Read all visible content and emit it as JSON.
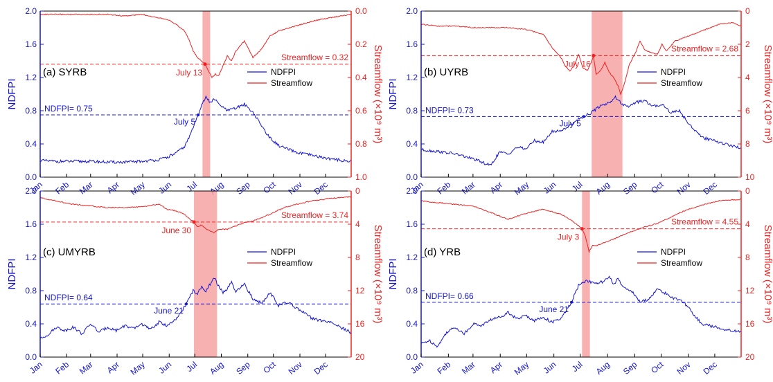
{
  "colors": {
    "ndfpi": "#1414d2",
    "streamflow": "#ee2222",
    "shade": "#f7a3a3",
    "axis_left": "#1414d2",
    "axis_right": "#ee2222"
  },
  "months": [
    "Jan",
    "Feb",
    "Mar",
    "Apr",
    "May",
    "Jun",
    "Jul",
    "Aug",
    "Sep",
    "Oct",
    "Nov",
    "Dec"
  ],
  "chart_data": [
    {
      "type": "line",
      "panel_label": "(a) SYRB",
      "ylabel_left": "NDFPI",
      "ylabel_right": "Streamflow (×10⁹ m³)",
      "ylim_left": [
        0,
        2.0
      ],
      "ylim_right": [
        0,
        1.0
      ],
      "right_inverted": true,
      "left_ticks": [
        "0.0",
        "0.4",
        "0.8",
        "1.2",
        "1.6",
        "2.0"
      ],
      "right_ticks": [
        "0.0",
        "0.2",
        "0.4",
        "0.6",
        "0.8",
        "1.0"
      ],
      "legend": [
        "NDFPI",
        "Streamflow"
      ],
      "shade": [
        191,
        200
      ],
      "ndfpi_threshold": 0.75,
      "ndfpi_threshold_label": "NDFPI= 0.75",
      "ndfpi_cross": {
        "day": 186,
        "label": "July 5"
      },
      "stream_threshold": 0.32,
      "stream_threshold_label": "Streamflow = 0.32",
      "stream_cross": {
        "day": 194,
        "label": "July 13"
      },
      "ndfpi": {
        "days": [
          1,
          20,
          40,
          60,
          80,
          100,
          120,
          140,
          150,
          160,
          170,
          175,
          180,
          186,
          190,
          195,
          200,
          205,
          210,
          220,
          230,
          240,
          250,
          260,
          270,
          280,
          300,
          320,
          340,
          364
        ],
        "values": [
          0.2,
          0.19,
          0.19,
          0.19,
          0.18,
          0.18,
          0.19,
          0.21,
          0.24,
          0.29,
          0.37,
          0.47,
          0.6,
          0.75,
          0.88,
          0.96,
          0.9,
          0.94,
          0.88,
          0.8,
          0.83,
          0.88,
          0.78,
          0.62,
          0.47,
          0.38,
          0.3,
          0.26,
          0.22,
          0.19
        ]
      },
      "streamflow": {
        "days": [
          1,
          20,
          40,
          60,
          80,
          100,
          120,
          140,
          150,
          160,
          170,
          175,
          180,
          185,
          190,
          194,
          198,
          202,
          206,
          210,
          215,
          220,
          225,
          230,
          240,
          250,
          260,
          270,
          280,
          300,
          320,
          340,
          364
        ],
        "values": [
          0.02,
          0.02,
          0.02,
          0.02,
          0.02,
          0.03,
          0.02,
          0.04,
          0.05,
          0.08,
          0.12,
          0.17,
          0.24,
          0.28,
          0.3,
          0.32,
          0.36,
          0.4,
          0.38,
          0.39,
          0.33,
          0.27,
          0.3,
          0.24,
          0.18,
          0.28,
          0.23,
          0.15,
          0.12,
          0.09,
          0.06,
          0.04,
          0.02
        ]
      }
    },
    {
      "type": "line",
      "panel_label": "(b) UYRB",
      "ylabel_left": "NDFPI",
      "ylabel_right": "Streamflow (×10⁹ m³)",
      "ylim_left": [
        0,
        2.0
      ],
      "ylim_right": [
        0,
        10
      ],
      "right_inverted": true,
      "left_ticks": [
        "0.0",
        "0.4",
        "0.8",
        "1.2",
        "1.6",
        "2.0"
      ],
      "right_ticks": [
        "0",
        "2",
        "4",
        "6",
        "8",
        "10"
      ],
      "legend": [
        "NDFPI",
        "Streamflow"
      ],
      "shade": [
        195,
        230
      ],
      "ndfpi_threshold": 0.73,
      "ndfpi_threshold_label": "NDFPI= 0.73",
      "ndfpi_cross": {
        "day": 186,
        "label": "July 5"
      },
      "stream_threshold": 2.68,
      "stream_threshold_label": "Streamflow = 2.68",
      "stream_cross": {
        "day": 197,
        "label": "July 16"
      },
      "ndfpi": {
        "days": [
          1,
          20,
          40,
          60,
          70,
          80,
          90,
          100,
          110,
          120,
          130,
          140,
          150,
          160,
          170,
          180,
          186,
          195,
          205,
          215,
          222,
          228,
          235,
          245,
          255,
          265,
          275,
          285,
          295,
          305,
          320,
          340,
          364
        ],
        "values": [
          0.33,
          0.31,
          0.28,
          0.22,
          0.18,
          0.14,
          0.3,
          0.28,
          0.36,
          0.34,
          0.44,
          0.42,
          0.55,
          0.56,
          0.62,
          0.7,
          0.73,
          0.78,
          0.86,
          0.9,
          0.96,
          0.9,
          0.84,
          0.9,
          0.92,
          0.85,
          0.88,
          0.78,
          0.8,
          0.65,
          0.48,
          0.42,
          0.35
        ]
      },
      "streamflow": {
        "days": [
          1,
          20,
          40,
          60,
          80,
          100,
          120,
          140,
          150,
          160,
          165,
          170,
          175,
          180,
          185,
          190,
          195,
          197,
          200,
          205,
          210,
          215,
          220,
          225,
          228,
          232,
          238,
          245,
          250,
          255,
          262,
          270,
          275,
          280,
          290,
          300,
          320,
          340,
          355,
          364
        ],
        "values": [
          0.8,
          0.9,
          0.9,
          1.0,
          1.0,
          1.0,
          1.1,
          1.4,
          2.2,
          2.8,
          3.3,
          3.6,
          3.3,
          2.6,
          3.4,
          3.6,
          3.0,
          2.68,
          3.8,
          3.6,
          3.1,
          3.7,
          4.0,
          4.5,
          5.0,
          4.4,
          3.2,
          2.5,
          1.8,
          2.3,
          2.5,
          2.6,
          2.0,
          2.4,
          1.8,
          1.6,
          1.2,
          0.8,
          0.7,
          0.9
        ]
      }
    },
    {
      "type": "line",
      "panel_label": "(c) UMYRB",
      "ylabel_left": "NDFPI",
      "ylabel_right": "Streamflow (×10⁹ m³)",
      "ylim_left": [
        0,
        2.0
      ],
      "ylim_right": [
        0,
        20
      ],
      "right_inverted": true,
      "left_ticks": [
        "0.0",
        "0.4",
        "0.8",
        "1.2",
        "1.6",
        "2.0"
      ],
      "right_ticks": [
        "0",
        "4",
        "8",
        "12",
        "16",
        "20"
      ],
      "legend": [
        "NDFPI",
        "Streamflow"
      ],
      "shade": [
        181,
        208
      ],
      "ndfpi_threshold": 0.64,
      "ndfpi_threshold_label": "NDFPI= 0.64",
      "ndfpi_cross": {
        "day": 172,
        "label": "June 21"
      },
      "stream_threshold": 3.74,
      "stream_threshold_label": "Streamflow = 3.74",
      "stream_cross": {
        "day": 181,
        "label": "June 30"
      },
      "ndfpi": {
        "days": [
          1,
          10,
          20,
          30,
          40,
          50,
          60,
          70,
          80,
          90,
          100,
          110,
          120,
          130,
          140,
          150,
          160,
          172,
          180,
          185,
          190,
          195,
          200,
          205,
          210,
          215,
          220,
          225,
          230,
          240,
          250,
          260,
          270,
          280,
          290,
          300,
          320,
          340,
          364
        ],
        "values": [
          0.22,
          0.27,
          0.36,
          0.32,
          0.36,
          0.28,
          0.4,
          0.3,
          0.36,
          0.32,
          0.38,
          0.34,
          0.4,
          0.33,
          0.42,
          0.38,
          0.45,
          0.64,
          0.8,
          0.76,
          0.84,
          0.8,
          0.88,
          0.95,
          0.85,
          0.78,
          0.82,
          0.9,
          0.78,
          0.88,
          0.7,
          0.65,
          0.78,
          0.62,
          0.66,
          0.6,
          0.46,
          0.42,
          0.3
        ]
      },
      "streamflow": {
        "days": [
          1,
          20,
          40,
          60,
          80,
          100,
          120,
          140,
          150,
          160,
          170,
          175,
          181,
          185,
          190,
          195,
          200,
          205,
          210,
          220,
          230,
          240,
          250,
          260,
          270,
          280,
          290,
          300,
          320,
          340,
          364
        ],
        "values": [
          0.8,
          1.2,
          1.6,
          1.8,
          2.0,
          2.0,
          1.9,
          1.6,
          2.2,
          2.4,
          2.8,
          3.3,
          3.74,
          4.3,
          4.1,
          4.6,
          4.8,
          5.0,
          4.6,
          4.6,
          4.2,
          3.8,
          3.6,
          3.2,
          2.8,
          2.3,
          1.9,
          1.6,
          1.2,
          0.9,
          0.7
        ]
      }
    },
    {
      "type": "line",
      "panel_label": "(d) YRB",
      "ylabel_left": "NDFPI",
      "ylabel_right": "Streamflow (×10⁹ m³)",
      "ylim_left": [
        0,
        2.0
      ],
      "ylim_right": [
        0,
        20
      ],
      "right_inverted": true,
      "left_ticks": [
        "0.0",
        "0.4",
        "0.8",
        "1.2",
        "1.6",
        "2.0"
      ],
      "right_ticks": [
        "0",
        "4",
        "8",
        "12",
        "16",
        "20"
      ],
      "legend": [
        "NDFPI",
        "Streamflow"
      ],
      "shade": [
        184,
        193
      ],
      "ndfpi_threshold": 0.66,
      "ndfpi_threshold_label": "NDFPI= 0.66",
      "ndfpi_cross": {
        "day": 172,
        "label": "June 21"
      },
      "stream_threshold": 4.55,
      "stream_threshold_label": "Streamflow = 4.55",
      "stream_cross": {
        "day": 184,
        "label": "July 3"
      },
      "ndfpi": {
        "days": [
          1,
          10,
          20,
          30,
          40,
          50,
          60,
          70,
          80,
          90,
          100,
          110,
          120,
          130,
          140,
          150,
          160,
          172,
          180,
          185,
          190,
          200,
          210,
          215,
          220,
          225,
          230,
          240,
          250,
          260,
          270,
          280,
          290,
          300,
          320,
          340,
          364
        ],
        "values": [
          0.16,
          0.2,
          0.13,
          0.3,
          0.36,
          0.28,
          0.4,
          0.38,
          0.45,
          0.48,
          0.54,
          0.46,
          0.5,
          0.44,
          0.48,
          0.42,
          0.46,
          0.66,
          0.86,
          0.9,
          0.92,
          0.88,
          0.92,
          0.96,
          0.88,
          0.94,
          0.85,
          0.8,
          0.66,
          0.7,
          0.82,
          0.76,
          0.7,
          0.66,
          0.4,
          0.35,
          0.3
        ]
      },
      "streamflow": {
        "days": [
          1,
          20,
          40,
          60,
          80,
          100,
          120,
          140,
          150,
          160,
          170,
          178,
          184,
          188,
          192,
          196,
          200,
          210,
          220,
          230,
          240,
          250,
          260,
          270,
          280,
          290,
          300,
          320,
          340,
          364
        ],
        "values": [
          1.2,
          1.4,
          1.6,
          1.8,
          2.6,
          3.4,
          2.7,
          2.2,
          2.5,
          2.8,
          3.4,
          4.0,
          4.55,
          5.5,
          7.3,
          6.6,
          6.6,
          6.2,
          5.8,
          5.3,
          4.9,
          4.5,
          4.2,
          3.9,
          3.4,
          2.9,
          2.4,
          1.7,
          1.2,
          1.0
        ]
      }
    }
  ]
}
